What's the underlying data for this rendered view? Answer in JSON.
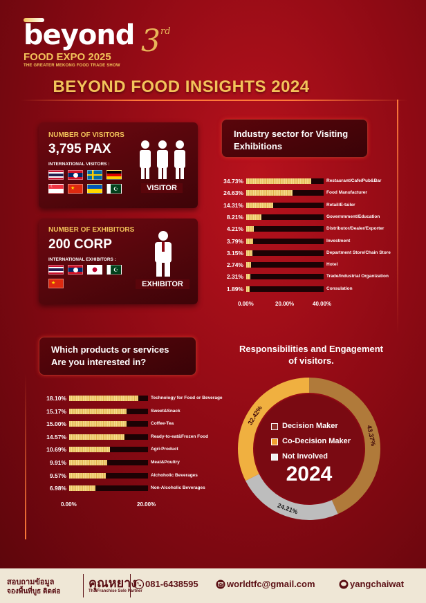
{
  "logo": {
    "word": "beyond",
    "event": "FOOD EXPO 2025",
    "tagline": "THE GREATER MEKONG FOOD TRADE SHOW",
    "edition": "3",
    "edition_suffix": "rd"
  },
  "title": "BEYOND FOOD INSIGHTS 2024",
  "visitors": {
    "label": "NUMBER OF VISITORS",
    "value": "3,795 PAX",
    "intl_label": "INTERNATIONAL VISITORS :",
    "figure_label": "VISITOR",
    "flags": [
      "thailand",
      "laos",
      "sweden",
      "germany",
      "singapore",
      "china",
      "ukraine",
      "pakistan"
    ]
  },
  "exhibitors": {
    "label": "NUMBER OF EXHIBITORS",
    "value": "200 CORP",
    "intl_label": "INTERNATIONAL EXHIBITORS :",
    "figure_label": "EXHIBITOR",
    "flags": [
      "thailand",
      "laos",
      "japan",
      "pakistan",
      "china"
    ]
  },
  "colors": {
    "bar_fill": "#e8bf5c",
    "bar_track": "#1c0204",
    "decision": "#e9a43c",
    "co_decision": "#f5a623",
    "not_involved": "#e0e0e0",
    "accent": "#f3c35a"
  },
  "chart_data": [
    {
      "type": "bar",
      "title": "Industry sector for Visiting Exhibitions",
      "orientation": "horizontal",
      "categories": [
        "Restaurant/Cafe/Pub&Bar",
        "Food Manufacturer",
        "Retail/E-tailer",
        "Governmment/Education",
        "Distributor/Dealer/Exporter",
        "Investment",
        "Department Store/Chain Store",
        "Hotel",
        "Trade/Industrial Organization",
        "Consulation"
      ],
      "values": [
        34.73,
        24.63,
        14.31,
        8.21,
        4.21,
        3.79,
        3.15,
        2.74,
        2.31,
        1.89
      ],
      "value_labels": [
        "34.73%",
        "24.63%",
        "14.31%",
        "8.21%",
        "4.21%",
        "3.79%",
        "3.15%",
        "2.74%",
        "2.31%",
        "1.89%"
      ],
      "xlim": [
        0,
        40
      ],
      "ticks": [
        "0.00%",
        "20.00%",
        "40.00%"
      ]
    },
    {
      "type": "bar",
      "title": "Which products or services Are you interested in?",
      "orientation": "horizontal",
      "categories": [
        "Technology for Food or Beverage",
        "Sweet&Snack",
        "Coffee-Tea",
        "Ready-to-eat&Frozen Food",
        "Agri-Product",
        "Meat&Poultry",
        "Alchoholic Beverages",
        "Non-Alcoholic Beverages"
      ],
      "values": [
        18.1,
        15.17,
        15.0,
        14.57,
        10.69,
        9.91,
        9.57,
        6.98
      ],
      "value_labels": [
        "18.10%",
        "15.17%",
        "15.00%",
        "14.57%",
        "10.69%",
        "9.91%",
        "9.57%",
        "6.98%"
      ],
      "xlim": [
        0,
        20
      ],
      "ticks": [
        "0.00%",
        "20.00%"
      ]
    },
    {
      "type": "pie",
      "title": "Responsibilities and Engagement of visitors.",
      "categories": [
        "Decision Maker",
        "Co-Decision Maker",
        "Not Involved"
      ],
      "values": [
        43.37,
        32.42,
        24.21
      ],
      "value_labels": [
        "43.37%",
        "32.42%",
        "24.21%"
      ],
      "center_label": "2024"
    }
  ],
  "panels": {
    "industry_title_l1": "Industry sector for Visiting",
    "industry_title_l2": "Exhibitions",
    "products_title_l1": "Which products or services",
    "products_title_l2": "Are you interested in?",
    "donut_title_l1": "Responsibilities and Engagement",
    "donut_title_l2": "of visitors."
  },
  "footer": {
    "thai_l1": "สอบถามข้อมูล",
    "thai_l2": "จองพื้นที่บูธ ติดต่อ",
    "brand": "คุณหยาง",
    "brand_sub": "ThaiFranchise Sole Partner",
    "phone": "081-6438595",
    "email": "worldtfc@gmail.com",
    "line": "yangchaiwat"
  }
}
